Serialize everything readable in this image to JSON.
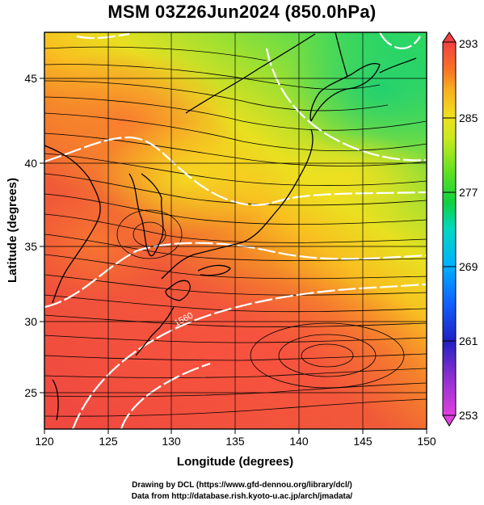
{
  "title": "MSM 03Z26Jun2024 (850.0hPa)",
  "map": {
    "lon_range": [
      120,
      150
    ],
    "lat_range": [
      22.5,
      47.7
    ],
    "variable": "temperature (K) shaded, wind streamlines",
    "xlabel": "Longitude (degrees)",
    "ylabel": "Latitude  (degrees)",
    "xticks": [
      {
        "value": 120,
        "label": "120"
      },
      {
        "value": 125,
        "label": "125"
      },
      {
        "value": 130,
        "label": "130"
      },
      {
        "value": 135,
        "label": "135"
      },
      {
        "value": 140,
        "label": "140"
      },
      {
        "value": 145,
        "label": "145"
      },
      {
        "value": 150,
        "label": "150"
      }
    ],
    "yticks": [
      {
        "value": 25,
        "label": "25"
      },
      {
        "value": 30,
        "label": "30"
      },
      {
        "value": 35,
        "label": "35"
      },
      {
        "value": 40,
        "label": "40"
      },
      {
        "value": 45,
        "label": "45"
      }
    ],
    "contour_label": "1560"
  },
  "colorbar": {
    "min": 253,
    "max": 293,
    "ticks": [
      {
        "value": 293,
        "label": "293"
      },
      {
        "value": 285,
        "label": "285"
      },
      {
        "value": 277,
        "label": "277"
      },
      {
        "value": 269,
        "label": "269"
      },
      {
        "value": 261,
        "label": "261"
      },
      {
        "value": 253,
        "label": "253"
      }
    ],
    "colors": [
      "#e040e0",
      "#9030d0",
      "#2020c0",
      "#1060ff",
      "#00b0ff",
      "#00d8c0",
      "#10d040",
      "#60e020",
      "#c8e820",
      "#f0e020",
      "#f8b020",
      "#f87028",
      "#f04040"
    ]
  },
  "credits": {
    "line1": "Drawing by DCL (https://www.gfd-dennou.org/library/dcl/)",
    "line2": "Data from http://database.rish.kyoto-u.ac.jp/arch/jmadata/"
  }
}
